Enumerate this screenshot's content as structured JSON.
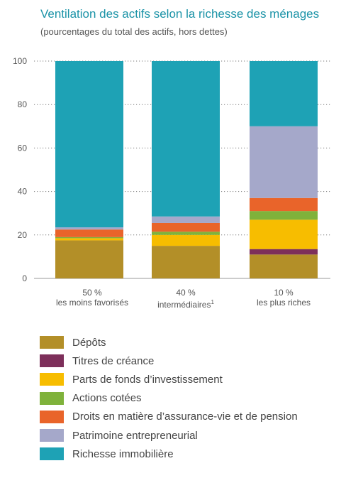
{
  "title": "Ventilation des actifs selon la richesse des ménages",
  "subtitle": "(pourcentages du total des actifs, hors dettes)",
  "chart_data": {
    "type": "bar",
    "stacked": true,
    "categories": [
      {
        "line1": "50 %",
        "line2": "les moins favorisés",
        "note": ""
      },
      {
        "line1": "40 %",
        "line2": "intermédiaires",
        "note": "1"
      },
      {
        "line1": "10 %",
        "line2": "les plus riches",
        "note": ""
      }
    ],
    "ylim": [
      0,
      100
    ],
    "yticks": [
      "0",
      "20",
      "40",
      "60",
      "80",
      "100"
    ],
    "grid": true,
    "legend_position": "bottom",
    "series": [
      {
        "name": "Dépôts",
        "color": "#b38f28",
        "values": [
          17.5,
          15,
          11
        ]
      },
      {
        "name": "Titres de créance",
        "color": "#7d2f5a",
        "values": [
          0,
          0,
          2.5
        ]
      },
      {
        "name": "Parts de fonds d’investissement",
        "color": "#f7bd00",
        "values": [
          1,
          5,
          13.5
        ]
      },
      {
        "name": "Actions cotées",
        "color": "#7fb23b",
        "values": [
          0.5,
          1.5,
          4
        ]
      },
      {
        "name": "Droits en matière d’assurance-vie et de pension",
        "color": "#e9642a",
        "values": [
          3.5,
          4,
          6
        ]
      },
      {
        "name": "Patrimoine entrepreneurial",
        "color": "#a5a8ca",
        "values": [
          1,
          3,
          33
        ]
      },
      {
        "name": "Richesse immobilière",
        "color": "#1ea2b5",
        "values": [
          76.5,
          71.5,
          30
        ]
      }
    ]
  }
}
